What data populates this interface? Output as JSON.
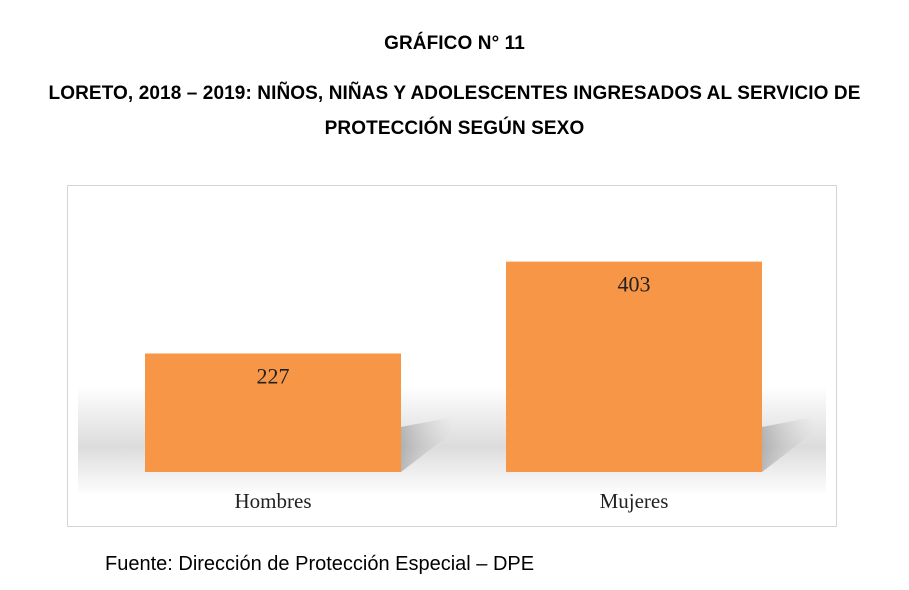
{
  "header": {
    "figure_number": "GRÁFICO N° 11",
    "title_line1": "LORETO, 2018 – 2019: NIÑOS, NIÑAS Y ADOLESCENTES INGRESADOS AL SERVICIO DE",
    "title_line2": "PROTECCIÓN SEGÚN SEXO"
  },
  "footer": {
    "source": "Fuente: Dirección de Protección Especial – DPE"
  },
  "colors": {
    "bar": "#F79646",
    "floor_shadow": "#d9d9d9",
    "border": "#d4d4d4"
  },
  "chart_data": {
    "type": "bar",
    "title": "",
    "xlabel": "",
    "ylabel": "",
    "categories": [
      "Hombres",
      "Mujeres"
    ],
    "values": [
      227,
      403
    ],
    "data_labels": [
      "227",
      "403"
    ],
    "ylim": [
      0,
      500
    ],
    "grid": false,
    "legend": "none"
  }
}
